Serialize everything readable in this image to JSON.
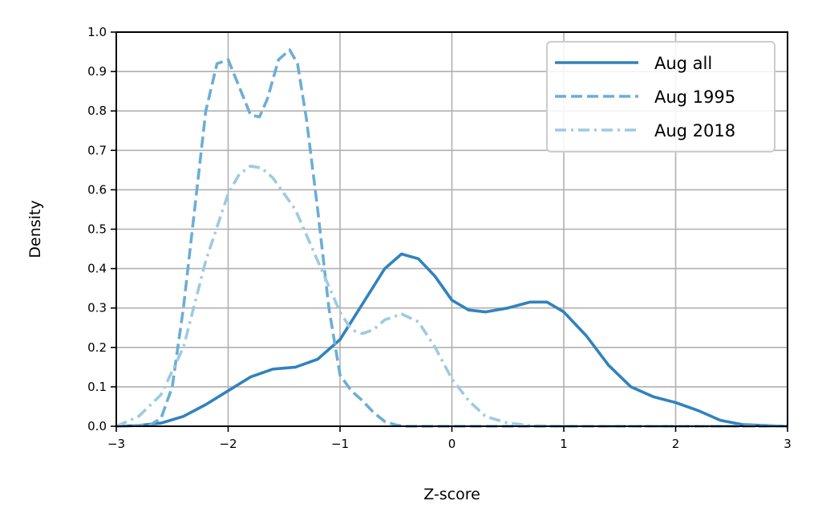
{
  "chart_data": {
    "type": "line",
    "xlabel": "Z-score",
    "ylabel": "Density",
    "xlim": [
      -3,
      3
    ],
    "ylim": [
      0,
      1.0
    ],
    "xticks": [
      -3,
      -2,
      -1,
      0,
      1,
      2,
      3
    ],
    "xtick_labels": [
      "−3",
      "−2",
      "−1",
      "0",
      "1",
      "2",
      "3"
    ],
    "yticks": [
      0.0,
      0.1,
      0.2,
      0.3,
      0.4,
      0.5,
      0.6,
      0.7,
      0.8,
      0.9,
      1.0
    ],
    "ytick_labels": [
      "0.0",
      "0.1",
      "0.2",
      "0.3",
      "0.4",
      "0.5",
      "0.6",
      "0.7",
      "0.8",
      "0.9",
      "1.0"
    ],
    "grid": true,
    "legend_position": "top-right",
    "series": [
      {
        "name": "Aug all",
        "color": "#3182bd",
        "dash": "solid",
        "points": [
          [
            -3.0,
            0.0
          ],
          [
            -2.8,
            0.002
          ],
          [
            -2.6,
            0.008
          ],
          [
            -2.4,
            0.025
          ],
          [
            -2.2,
            0.055
          ],
          [
            -2.0,
            0.09
          ],
          [
            -1.8,
            0.125
          ],
          [
            -1.6,
            0.145
          ],
          [
            -1.4,
            0.15
          ],
          [
            -1.2,
            0.17
          ],
          [
            -1.0,
            0.22
          ],
          [
            -0.8,
            0.31
          ],
          [
            -0.6,
            0.4
          ],
          [
            -0.45,
            0.437
          ],
          [
            -0.3,
            0.425
          ],
          [
            -0.15,
            0.38
          ],
          [
            0.0,
            0.32
          ],
          [
            0.15,
            0.295
          ],
          [
            0.3,
            0.29
          ],
          [
            0.5,
            0.3
          ],
          [
            0.7,
            0.315
          ],
          [
            0.85,
            0.315
          ],
          [
            1.0,
            0.29
          ],
          [
            1.2,
            0.23
          ],
          [
            1.4,
            0.155
          ],
          [
            1.6,
            0.1
          ],
          [
            1.8,
            0.075
          ],
          [
            2.0,
            0.06
          ],
          [
            2.2,
            0.04
          ],
          [
            2.4,
            0.015
          ],
          [
            2.6,
            0.004
          ],
          [
            3.0,
            0.0
          ]
        ]
      },
      {
        "name": "Aug 1995",
        "color": "#6baed6",
        "dash": "dashed",
        "points": [
          [
            -3.0,
            0.0
          ],
          [
            -2.7,
            0.003
          ],
          [
            -2.6,
            0.02
          ],
          [
            -2.5,
            0.1
          ],
          [
            -2.4,
            0.3
          ],
          [
            -2.3,
            0.55
          ],
          [
            -2.2,
            0.8
          ],
          [
            -2.1,
            0.92
          ],
          [
            -2.0,
            0.93
          ],
          [
            -1.9,
            0.86
          ],
          [
            -1.8,
            0.79
          ],
          [
            -1.72,
            0.785
          ],
          [
            -1.65,
            0.83
          ],
          [
            -1.55,
            0.93
          ],
          [
            -1.45,
            0.955
          ],
          [
            -1.38,
            0.92
          ],
          [
            -1.3,
            0.78
          ],
          [
            -1.2,
            0.55
          ],
          [
            -1.1,
            0.3
          ],
          [
            -1.0,
            0.13
          ],
          [
            -0.9,
            0.09
          ],
          [
            -0.8,
            0.065
          ],
          [
            -0.7,
            0.035
          ],
          [
            -0.6,
            0.012
          ],
          [
            -0.5,
            0.003
          ],
          [
            -0.4,
            0.0
          ],
          [
            3.0,
            0.0
          ]
        ]
      },
      {
        "name": "Aug 2018",
        "color": "#9ecae1",
        "dash": "dashdot",
        "points": [
          [
            -3.0,
            0.0
          ],
          [
            -2.8,
            0.025
          ],
          [
            -2.6,
            0.08
          ],
          [
            -2.4,
            0.2
          ],
          [
            -2.2,
            0.42
          ],
          [
            -2.0,
            0.59
          ],
          [
            -1.9,
            0.64
          ],
          [
            -1.8,
            0.66
          ],
          [
            -1.7,
            0.655
          ],
          [
            -1.6,
            0.63
          ],
          [
            -1.4,
            0.55
          ],
          [
            -1.2,
            0.42
          ],
          [
            -1.0,
            0.29
          ],
          [
            -0.9,
            0.245
          ],
          [
            -0.8,
            0.235
          ],
          [
            -0.7,
            0.245
          ],
          [
            -0.6,
            0.27
          ],
          [
            -0.45,
            0.285
          ],
          [
            -0.3,
            0.265
          ],
          [
            -0.15,
            0.2
          ],
          [
            0.0,
            0.12
          ],
          [
            0.15,
            0.065
          ],
          [
            0.3,
            0.025
          ],
          [
            0.5,
            0.008
          ],
          [
            0.7,
            0.002
          ],
          [
            1.0,
            0.0
          ],
          [
            3.0,
            0.0
          ]
        ]
      }
    ]
  }
}
